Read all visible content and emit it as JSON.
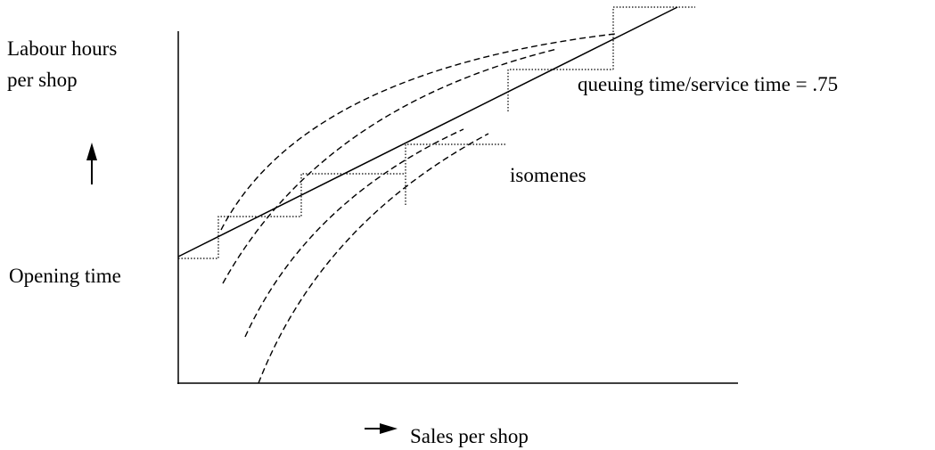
{
  "y_axis_label": {
    "lines": [
      "Labour hours",
      "per shop"
    ]
  },
  "opening_label": "Opening time",
  "ratio_label": "queuing time/service time = .75",
  "curve_label": "isomenes",
  "x_axis_label": "Sales per shop"
}
